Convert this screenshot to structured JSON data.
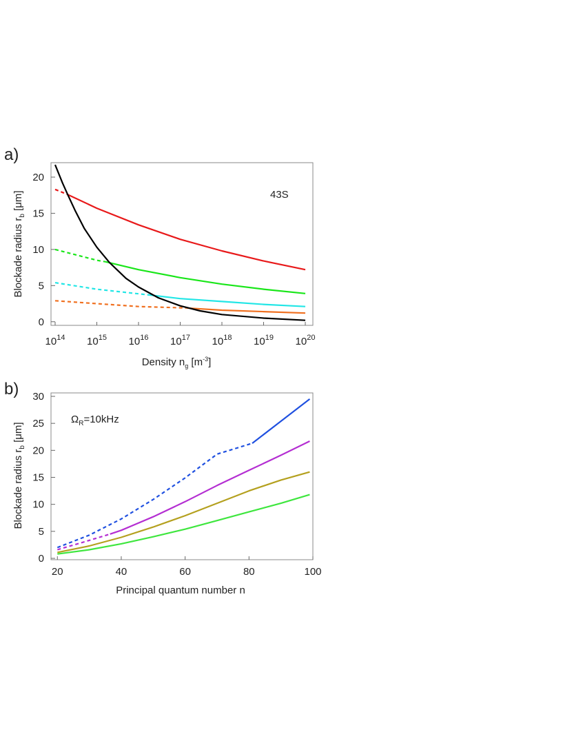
{
  "chart_data": [
    {
      "id": "a",
      "type": "line",
      "panel_label": "a)",
      "annotation": "43S",
      "xlabel": "Density n_g [m^-3]",
      "xlabel_parts": {
        "main": "Density n",
        "sub": "g",
        "unit_open": " [m",
        "unit_sup": "-3",
        "unit_close": "]"
      },
      "ylabel_parts": {
        "main": "Blockade radius r",
        "sub": "b",
        "unit": " [μm]"
      },
      "xscale": "log",
      "xlim": [
        100000000000000.0,
        1e+20
      ],
      "ylim": [
        -0.5,
        22
      ],
      "xticks": [
        {
          "base": "10",
          "exp": "14",
          "value": 100000000000000.0
        },
        {
          "base": "10",
          "exp": "15",
          "value": 1000000000000000.0
        },
        {
          "base": "10",
          "exp": "16",
          "value": 1e+16
        },
        {
          "base": "10",
          "exp": "17",
          "value": 1e+17
        },
        {
          "base": "10",
          "exp": "18",
          "value": 1e+18
        },
        {
          "base": "10",
          "exp": "19",
          "value": 1e+19
        },
        {
          "base": "10",
          "exp": "20",
          "value": 1e+20
        }
      ],
      "yticks": [
        "0",
        "5",
        "10",
        "15",
        "20"
      ],
      "series": [
        {
          "color": "#e8191a",
          "style": "dashed",
          "x": [
            100000000000000.0,
            200000000000000.0
          ],
          "y": [
            18.3,
            17.6
          ]
        },
        {
          "color": "#e8191a",
          "style": "solid",
          "x": [
            200000000000000.0,
            1000000000000000.0,
            1e+16,
            1e+17,
            1e+18,
            1e+19,
            1e+20
          ],
          "y": [
            17.6,
            15.7,
            13.4,
            11.4,
            9.8,
            8.4,
            7.2
          ]
        },
        {
          "color": "#19e619",
          "style": "dashed",
          "x": [
            100000000000000.0,
            1000000000000000.0,
            1600000000000000.0
          ],
          "y": [
            10.0,
            8.5,
            8.3
          ]
        },
        {
          "color": "#19e619",
          "style": "solid",
          "x": [
            1600000000000000.0,
            1e+16,
            1e+17,
            1e+18,
            1e+19,
            1e+20
          ],
          "y": [
            8.3,
            7.2,
            6.1,
            5.2,
            4.5,
            3.9
          ]
        },
        {
          "color": "#22e6e6",
          "style": "dashed",
          "x": [
            100000000000000.0,
            1000000000000000.0,
            1.8e+16
          ],
          "y": [
            5.4,
            4.5,
            3.7
          ]
        },
        {
          "color": "#22e6e6",
          "style": "solid",
          "x": [
            1.8e+16,
            1e+17,
            1e+18,
            1e+19,
            1e+20
          ],
          "y": [
            3.7,
            3.2,
            2.8,
            2.4,
            2.1
          ]
        },
        {
          "color": "#f07020",
          "style": "dashed",
          "x": [
            100000000000000.0,
            1000000000000000.0,
            1e+16,
            1.4e+17
          ],
          "y": [
            2.9,
            2.5,
            2.1,
            1.9
          ]
        },
        {
          "color": "#f07020",
          "style": "solid",
          "x": [
            1.4e+17,
            1e+18,
            1e+19,
            1e+20
          ],
          "y": [
            1.9,
            1.6,
            1.4,
            1.2
          ]
        },
        {
          "color": "#000000",
          "style": "solid",
          "x": [
            100000000000000.0,
            150000000000000.0,
            200000000000000.0,
            300000000000000.0,
            500000000000000.0,
            1000000000000000.0,
            2000000000000000.0,
            5000000000000000.0,
            1e+16,
            3e+16,
            1e+17,
            3e+17,
            1e+18,
            1e+19,
            1e+20
          ],
          "y": [
            21.7,
            19.2,
            17.6,
            15.4,
            12.9,
            10.3,
            8.2,
            6.0,
            4.8,
            3.3,
            2.2,
            1.5,
            1.0,
            0.5,
            0.2
          ]
        }
      ]
    },
    {
      "id": "b",
      "type": "line",
      "panel_label": "b)",
      "annotation": {
        "omega": "Ω",
        "sub": "R",
        "rest": "=10kHz"
      },
      "xlabel": "Principal quantum number n",
      "ylabel_parts": {
        "main": "Blockade radius r",
        "sub": "b",
        "unit": " [μm]"
      },
      "xlim": [
        18,
        100
      ],
      "ylim": [
        0,
        30
      ],
      "xticks": [
        "20",
        "40",
        "60",
        "80",
        "100"
      ],
      "yticks": [
        "0",
        "5",
        "10",
        "15",
        "20",
        "25",
        "30"
      ],
      "series": [
        {
          "color": "#1f50e0",
          "style": "dashed",
          "x": [
            20,
            30,
            40,
            50,
            60,
            70,
            81
          ],
          "y": [
            2.0,
            4.3,
            7.3,
            10.9,
            14.9,
            19.3,
            21.3
          ]
        },
        {
          "color": "#1f50e0",
          "style": "solid",
          "x": [
            81,
            90,
            99
          ],
          "y": [
            21.3,
            25.4,
            29.5
          ]
        },
        {
          "color": "#b42ed2",
          "style": "dashed",
          "x": [
            20,
            27,
            36.5
          ],
          "y": [
            1.6,
            2.8,
            4.5
          ]
        },
        {
          "color": "#b42ed2",
          "style": "solid",
          "x": [
            36.5,
            40,
            50,
            60,
            70,
            80,
            90,
            99
          ],
          "y": [
            4.5,
            5.2,
            7.7,
            10.5,
            13.5,
            16.3,
            19.1,
            21.7
          ]
        },
        {
          "color": "#b4a01e",
          "style": "solid",
          "x": [
            20,
            30,
            40,
            50,
            60,
            70,
            80,
            90,
            99
          ],
          "y": [
            1.1,
            2.3,
            3.9,
            5.8,
            7.9,
            10.2,
            12.5,
            14.5,
            16.0
          ]
        },
        {
          "color": "#3ee63e",
          "style": "solid",
          "x": [
            20,
            30,
            40,
            50,
            60,
            70,
            80,
            90,
            99
          ],
          "y": [
            0.8,
            1.6,
            2.7,
            4.0,
            5.4,
            7.0,
            8.6,
            10.2,
            11.8
          ]
        }
      ]
    }
  ]
}
